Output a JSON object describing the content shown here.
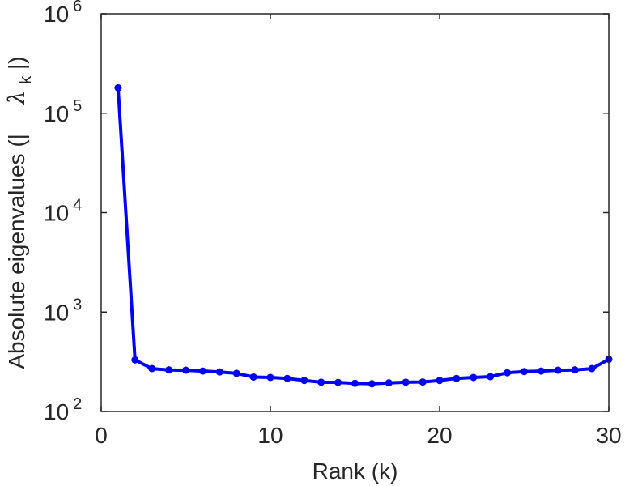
{
  "chart_data": {
    "type": "line",
    "xlabel": "Rank (k)",
    "ylabel": "Absolute eigenvalues (|λk|)",
    "ylabel_parts": {
      "prefix": "Absolute eigenvalues (|",
      "symbol": "λ",
      "subscript": "k",
      "suffix": "|)"
    },
    "xlim": [
      0,
      30
    ],
    "ylim": [
      100,
      1000000
    ],
    "yscale": "log",
    "xticks": [
      0,
      10,
      20,
      30
    ],
    "xtick_labels": [
      "0",
      "10",
      "20",
      "30"
    ],
    "yticks": [
      100,
      1000,
      10000,
      100000,
      1000000
    ],
    "ytick_labels": [
      {
        "base": "10",
        "exp": "2"
      },
      {
        "base": "10",
        "exp": "3"
      },
      {
        "base": "10",
        "exp": "4"
      },
      {
        "base": "10",
        "exp": "5"
      },
      {
        "base": "10",
        "exp": "6"
      }
    ],
    "grid": false,
    "series": [
      {
        "color": "#0000ff",
        "x": [
          1,
          2,
          3,
          4,
          5,
          6,
          7,
          8,
          9,
          10,
          11,
          12,
          13,
          14,
          15,
          16,
          17,
          18,
          19,
          20,
          21,
          22,
          23,
          24,
          25,
          26,
          27,
          28,
          29,
          30
        ],
        "y": [
          180000,
          330,
          270,
          262,
          260,
          255,
          250,
          242,
          222,
          220,
          215,
          205,
          197,
          196,
          192,
          190,
          194,
          197,
          198,
          205,
          215,
          220,
          224,
          245,
          252,
          255,
          260,
          262,
          270,
          335
        ]
      }
    ]
  }
}
